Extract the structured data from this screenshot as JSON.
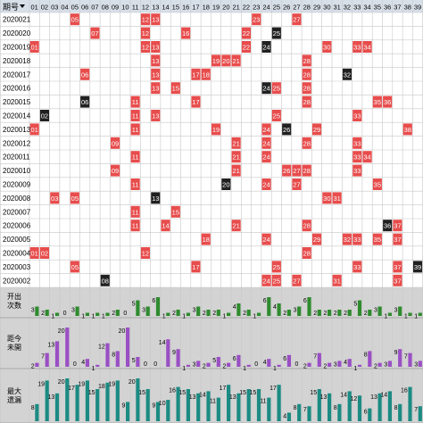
{
  "colors": {
    "header_bg": "#d7dfe9",
    "grid_line": "#c8c8c8",
    "red": "#e84c4c",
    "black": "#202020",
    "stat_bg": "#d3d3d3",
    "bar_green": "#2e8b2e",
    "bar_purple": "#9a4fc4",
    "bar_teal": "#1b8b83"
  },
  "header": {
    "period_label": "期号",
    "dropdown_icon": "triangle-down-icon",
    "numbers": [
      "01",
      "02",
      "03",
      "04",
      "05",
      "06",
      "07",
      "08",
      "09",
      "10",
      "11",
      "12",
      "13",
      "14",
      "15",
      "16",
      "17",
      "18",
      "19",
      "20",
      "21",
      "22",
      "23",
      "24",
      "25",
      "26",
      "27",
      "28",
      "29",
      "30",
      "31",
      "32",
      "33",
      "34",
      "35",
      "36",
      "37",
      "38",
      "39"
    ]
  },
  "stat_labels": {
    "appear": [
      "开出",
      "次数"
    ],
    "miss": [
      "距今",
      "未開"
    ],
    "max_miss": [
      "最大",
      "遗漏"
    ]
  },
  "chart_data": {
    "type": "table",
    "rows": [
      {
        "period": "2020021",
        "red": [
          5,
          12,
          13,
          23,
          27
        ],
        "black": []
      },
      {
        "period": "2020020",
        "red": [
          7,
          12,
          16,
          22
        ],
        "black": [
          25
        ]
      },
      {
        "period": "2020019",
        "red": [
          1,
          12,
          13,
          22,
          30,
          33,
          34
        ],
        "black": [
          24
        ]
      },
      {
        "period": "2020018",
        "red": [
          13,
          19,
          20,
          21,
          28
        ],
        "black": []
      },
      {
        "period": "2020017",
        "red": [
          6,
          13,
          17,
          18,
          28
        ],
        "black": [
          32
        ]
      },
      {
        "period": "2020016",
        "red": [
          13,
          15,
          25,
          28
        ],
        "black": [
          24
        ]
      },
      {
        "period": "2020015",
        "red": [
          11,
          17,
          28,
          35,
          36
        ],
        "black": [
          6
        ]
      },
      {
        "period": "2020014",
        "red": [
          11,
          13,
          25,
          33
        ],
        "black": [
          2
        ]
      },
      {
        "period": "2020013",
        "red": [
          1,
          11,
          19,
          24,
          29,
          38
        ],
        "black": [
          26
        ]
      },
      {
        "period": "2020012",
        "red": [
          9,
          21,
          24,
          28,
          33
        ],
        "black": []
      },
      {
        "period": "2020011",
        "red": [
          11,
          21,
          24,
          33,
          34
        ],
        "black": []
      },
      {
        "period": "2020010",
        "red": [
          9,
          21,
          26,
          27,
          28,
          33
        ],
        "black": []
      },
      {
        "period": "2020009",
        "red": [
          11,
          24,
          27,
          35
        ],
        "black": [
          20
        ]
      },
      {
        "period": "2020008",
        "red": [
          3,
          5,
          30,
          31
        ],
        "black": [
          13
        ]
      },
      {
        "period": "2020007",
        "red": [
          11,
          15
        ],
        "black": []
      },
      {
        "period": "2020006",
        "red": [
          11,
          14,
          21,
          28,
          37
        ],
        "black": [
          36
        ]
      },
      {
        "period": "2020005",
        "red": [
          18,
          24,
          29,
          32,
          33,
          35,
          37
        ],
        "black": []
      },
      {
        "period": "2020004",
        "red": [
          1,
          2,
          12,
          28
        ],
        "black": []
      },
      {
        "period": "2020003",
        "red": [
          5,
          17,
          25,
          33,
          37
        ],
        "black": [
          39
        ]
      },
      {
        "period": "2020002",
        "red": [
          24,
          25,
          27,
          31,
          37
        ],
        "black": [
          8
        ]
      }
    ],
    "appear_counts": [
      3,
      2,
      1,
      0,
      3,
      1,
      1,
      1,
      2,
      0,
      5,
      3,
      6,
      1,
      2,
      1,
      3,
      2,
      2,
      1,
      4,
      2,
      1,
      6,
      4,
      2,
      3,
      6,
      2,
      2,
      2,
      2,
      5,
      2,
      3,
      1,
      3,
      1,
      1
    ],
    "current_miss": [
      2,
      7,
      13,
      20,
      0,
      4,
      1,
      12,
      8,
      20,
      5,
      0,
      0,
      14,
      9,
      1,
      3,
      2,
      5,
      2,
      6,
      1,
      0,
      4,
      1,
      6,
      0,
      2,
      7,
      2,
      3,
      4,
      1,
      8,
      2,
      3,
      9,
      7,
      3
    ],
    "max_miss": [
      8,
      19,
      13,
      20,
      17,
      19,
      15,
      18,
      19,
      9,
      20,
      15,
      9,
      10,
      16,
      15,
      13,
      14,
      11,
      17,
      13,
      15,
      15,
      11,
      17,
      4,
      8,
      7,
      15,
      13,
      8,
      14,
      12,
      6,
      13,
      14,
      8,
      16,
      7
    ]
  }
}
